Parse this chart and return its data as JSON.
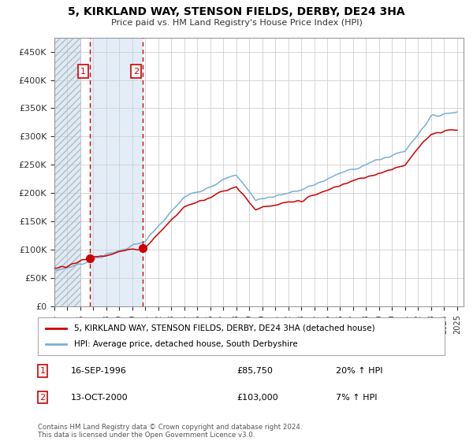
{
  "title1": "5, KIRKLAND WAY, STENSON FIELDS, DERBY, DE24 3HA",
  "title2": "Price paid vs. HM Land Registry's House Price Index (HPI)",
  "legend_label1": "5, KIRKLAND WAY, STENSON FIELDS, DERBY, DE24 3HA (detached house)",
  "legend_label2": "HPI: Average price, detached house, South Derbyshire",
  "sale1_label": "1",
  "sale1_date": "16-SEP-1996",
  "sale1_price": "£85,750",
  "sale1_hpi": "20% ↑ HPI",
  "sale2_label": "2",
  "sale2_date": "13-OCT-2000",
  "sale2_price": "£103,000",
  "sale2_hpi": "7% ↑ HPI",
  "footnote": "Contains HM Land Registry data © Crown copyright and database right 2024.\nThis data is licensed under the Open Government Licence v3.0.",
  "hatch_color": "#c8d8e8",
  "sale_color": "#cc0000",
  "hpi_color": "#7aaed6",
  "sale1_year": 1996.71,
  "sale2_year": 2000.78,
  "ylim": [
    0,
    475000
  ],
  "yticks": [
    0,
    50000,
    100000,
    150000,
    200000,
    250000,
    300000,
    350000,
    400000,
    450000
  ],
  "xlim": [
    1994.0,
    2025.5
  ]
}
